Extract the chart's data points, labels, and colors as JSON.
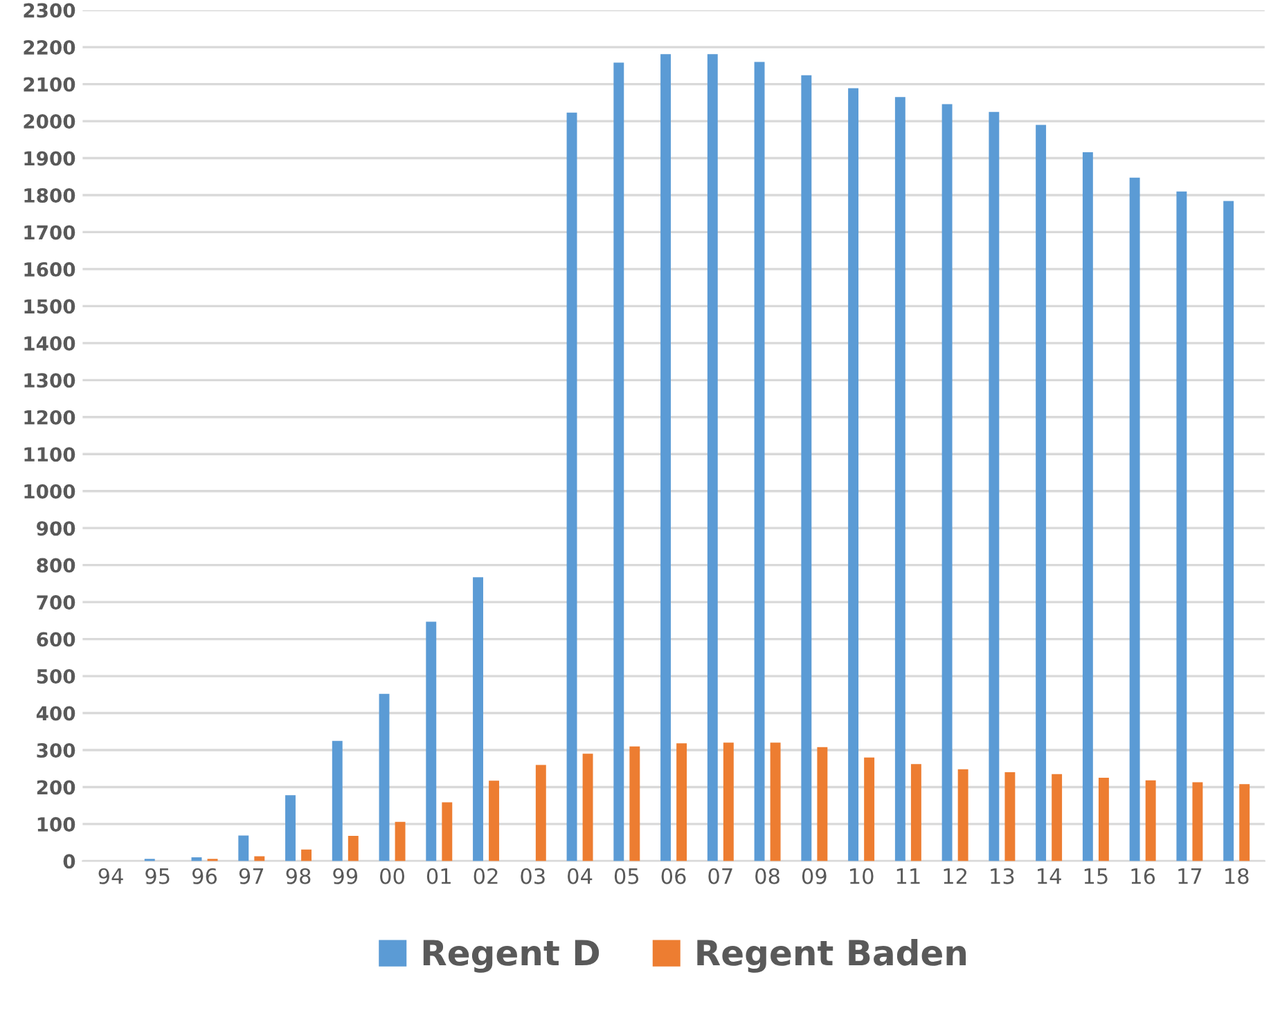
{
  "chart_data": {
    "type": "bar",
    "categories": [
      "94",
      "95",
      "96",
      "97",
      "98",
      "99",
      "00",
      "01",
      "02",
      "03",
      "04",
      "05",
      "06",
      "07",
      "08",
      "09",
      "10",
      "11",
      "12",
      "13",
      "14",
      "15",
      "16",
      "17",
      "18"
    ],
    "series": [
      {
        "name": "Regent D",
        "color": "#5b9bd5",
        "values": [
          0,
          6,
          10,
          69,
          178,
          325,
          452,
          647,
          767,
          0,
          2023,
          2158,
          2181,
          2181,
          2160,
          2124,
          2089,
          2065,
          2046,
          2025,
          1990,
          1916,
          1847,
          1810,
          1784
        ]
      },
      {
        "name": "Regent Baden",
        "color": "#ed7d31",
        "values": [
          0,
          0,
          6,
          13,
          31,
          68,
          106,
          159,
          217,
          260,
          290,
          310,
          318,
          320,
          320,
          308,
          280,
          262,
          248,
          240,
          235,
          225,
          218,
          213,
          208
        ]
      }
    ],
    "ylim": [
      0,
      2300
    ],
    "yticks": [
      0,
      100,
      200,
      300,
      400,
      500,
      600,
      700,
      800,
      900,
      1000,
      1100,
      1200,
      1300,
      1400,
      1500,
      1600,
      1700,
      1800,
      1900,
      2000,
      2100,
      2200,
      2300
    ],
    "grid": "y",
    "legend": "bottom"
  }
}
